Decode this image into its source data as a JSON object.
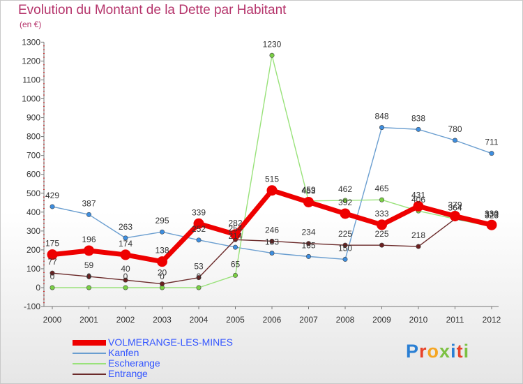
{
  "title": "Evolution du Montant de la Dette par Habitant",
  "unit": "(en €)",
  "logo": {
    "text": "Proxiti",
    "letters": [
      {
        "ch": "P",
        "color": "#2a7fd4"
      },
      {
        "ch": "r",
        "color": "#e8432a"
      },
      {
        "ch": "o",
        "color": "#f5a623"
      },
      {
        "ch": "x",
        "color": "#7cc142"
      },
      {
        "ch": "i",
        "color": "#2a7fd4"
      },
      {
        "ch": "t",
        "color": "#e8432a"
      },
      {
        "ch": "i",
        "color": "#7cc142"
      }
    ]
  },
  "chart_data": {
    "type": "line",
    "title": "Evolution du Montant de la Dette par Habitant",
    "ylabel": "(en €)",
    "xlabel": "",
    "x": [
      "2000",
      "2001",
      "2002",
      "2003",
      "2004",
      "2005",
      "2006",
      "2007",
      "2008",
      "2009",
      "2010",
      "2011",
      "2012"
    ],
    "ylim": [
      -100,
      1300
    ],
    "yticks": [
      -100,
      0,
      100,
      200,
      300,
      400,
      500,
      600,
      700,
      800,
      900,
      1000,
      1100,
      1200,
      1300
    ],
    "grid": false,
    "legend_position": "bottom-left",
    "series": [
      {
        "name": "VOLMERANGE-LES-MINES",
        "color": "#ee0000",
        "marker": "#ee0000",
        "width": 7,
        "values": [
          175,
          196,
          174,
          138,
          339,
          282,
          515,
          453,
          392,
          333,
          431,
          379,
          332
        ]
      },
      {
        "name": "Kanfen",
        "color": "#6a9ed0",
        "marker": "#3d8ee0",
        "width": 1.4,
        "values": [
          429,
          387,
          263,
          295,
          252,
          214,
          183,
          165,
          150,
          848,
          838,
          780,
          711
        ]
      },
      {
        "name": "Escherange",
        "color": "#99e27a",
        "marker": "#7ad044",
        "width": 1.4,
        "values": [
          0,
          0,
          0,
          0,
          0,
          65,
          1230,
          459,
          462,
          465,
          406,
          364,
          323
        ]
      },
      {
        "name": "Entrange",
        "color": "#6b2a2a",
        "marker": "#6b2020",
        "width": 1.4,
        "values": [
          77,
          59,
          40,
          20,
          53,
          254,
          246,
          234,
          225,
          225,
          218,
          364,
          330
        ]
      }
    ],
    "data_labels": [
      [
        "175",
        "196",
        "174",
        "138",
        "339",
        "282",
        "515",
        "453",
        "392",
        "333",
        "431",
        "379",
        "332"
      ],
      [
        "429",
        "387",
        "263",
        "295",
        "252",
        "214",
        "183",
        "165",
        "150",
        "848",
        "838",
        "780",
        "711"
      ],
      [
        "0",
        "0",
        "0",
        "0",
        "0",
        "65",
        "1230",
        "459",
        "462",
        "465",
        "406",
        "364",
        "323"
      ],
      [
        "77",
        "59",
        "40",
        "20",
        "53",
        "254",
        "246",
        "234",
        "225",
        "225",
        "218",
        "364",
        "330"
      ]
    ]
  }
}
